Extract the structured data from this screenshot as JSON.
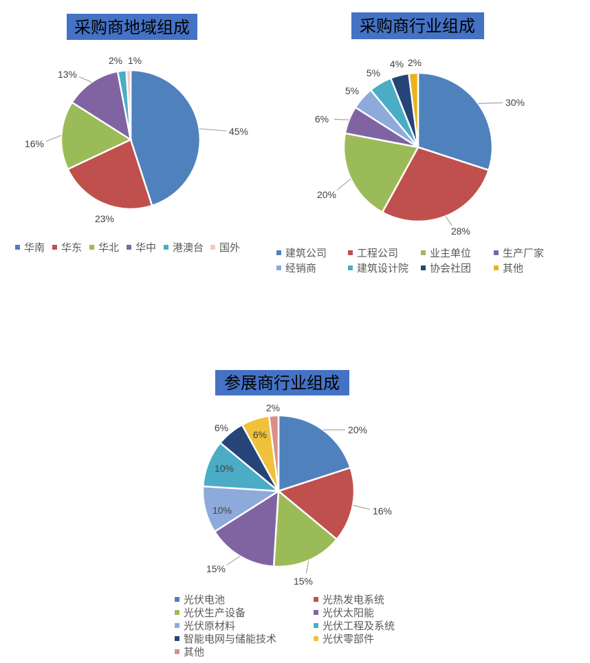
{
  "chart_data": [
    {
      "type": "pie",
      "title": "采购商地域组成",
      "categories": [
        "华南",
        "华东",
        "华北",
        "华中",
        "港澳台",
        "国外"
      ],
      "values": [
        45,
        23,
        16,
        13,
        2,
        1
      ],
      "labels": [
        "45%",
        "23%",
        "16%",
        "13%",
        "2%",
        "1%"
      ],
      "colors": [
        "#4F81BD",
        "#C0504D",
        "#9BBB59",
        "#8064A2",
        "#4BACC6",
        "#F7C6B8"
      ],
      "legend": "bottom"
    },
    {
      "type": "pie",
      "title": "采购商行业组成",
      "categories": [
        "建筑公司",
        "工程公司",
        "业主单位",
        "生产厂家",
        "经销商",
        "建筑设计院",
        "协会社团",
        "其他"
      ],
      "values": [
        30,
        28,
        20,
        6,
        5,
        5,
        4,
        2
      ],
      "labels": [
        "30%",
        "28%",
        "20%",
        "6%",
        "5%",
        "5%",
        "4%",
        "2%"
      ],
      "colors": [
        "#4F81BD",
        "#C0504D",
        "#9BBB59",
        "#8064A2",
        "#8EAADB",
        "#4BACC6",
        "#264478",
        "#E8B41C"
      ],
      "legend": "bottom"
    },
    {
      "type": "pie",
      "title": "参展商行业组成",
      "categories": [
        "光伏电池",
        "光热发电系统",
        "光伏生产设备",
        "光伏太阳能",
        "光伏原材料",
        "光伏工程及系统",
        "智能电网与储能技术",
        "光伏零部件",
        "其他"
      ],
      "values": [
        20,
        16,
        15,
        15,
        10,
        10,
        6,
        6,
        2
      ],
      "labels": [
        "20%",
        "16%",
        "15%",
        "15%",
        "10%",
        "10%",
        "6%",
        "6%",
        "2%"
      ],
      "colors": [
        "#4F81BD",
        "#C0504D",
        "#9BBB59",
        "#8064A2",
        "#8EAADB",
        "#4BACC6",
        "#264478",
        "#F0C13A",
        "#DA8F8A"
      ],
      "legend": "bottom"
    }
  ]
}
